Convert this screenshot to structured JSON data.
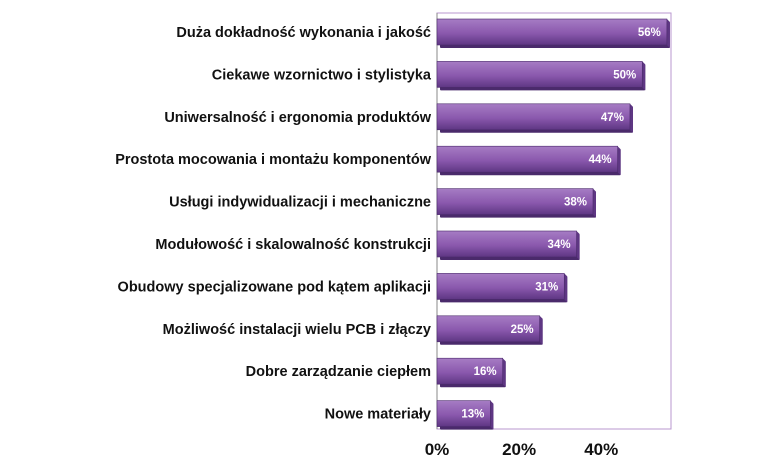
{
  "chart_data": {
    "type": "bar",
    "orientation": "horizontal",
    "categories": [
      "Duża dokładność wykonania i jakość",
      "Ciekawe wzornictwo i stylistyka",
      "Uniwersalność i ergonomia produktów",
      "Prostota mocowania i montażu komponentów",
      "Usługi indywidualizacji i mechaniczne",
      "Modułowość i skalowalność konstrukcji",
      "Obudowy specjalizowane pod kątem aplikacji",
      "Możliwość instalacji wielu PCB i złączy",
      "Dobre zarządzanie ciepłem",
      "Nowe materiały"
    ],
    "values": [
      56,
      50,
      47,
      44,
      38,
      34,
      31,
      25,
      16,
      13
    ],
    "value_labels": [
      "56%",
      "50%",
      "47%",
      "44%",
      "38%",
      "34%",
      "31%",
      "25%",
      "16%",
      "13%"
    ],
    "x_ticks": [
      0,
      20,
      40
    ],
    "x_tick_labels": [
      "0%",
      "20%",
      "40%"
    ],
    "xlim": [
      0,
      57
    ],
    "grid": false,
    "colors": {
      "bar_light": "#a67cc4",
      "bar_main": "#8a58ad",
      "bar_dark": "#5e3683",
      "bar_edge": "#4a2a6b",
      "frame": "#b897cf"
    }
  }
}
